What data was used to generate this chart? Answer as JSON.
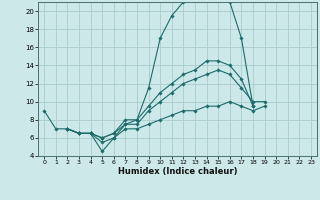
{
  "xlabel": "Humidex (Indice chaleur)",
  "bg_color": "#cce8e8",
  "grid_color": "#aacccc",
  "line_color": "#1e6b6b",
  "xlim": [
    -0.5,
    23.5
  ],
  "ylim": [
    4,
    21
  ],
  "xticks": [
    0,
    1,
    2,
    3,
    4,
    5,
    6,
    7,
    8,
    9,
    10,
    11,
    12,
    13,
    14,
    15,
    16,
    17,
    18,
    19,
    20,
    21,
    22,
    23
  ],
  "yticks": [
    4,
    6,
    8,
    10,
    12,
    14,
    16,
    18,
    20
  ],
  "lines": [
    {
      "x": [
        0,
        1,
        2,
        3,
        4,
        5,
        6,
        7,
        8,
        9,
        10,
        11,
        12,
        13,
        14,
        15,
        16,
        17,
        18
      ],
      "y": [
        9,
        7,
        7,
        6.5,
        6.5,
        4.5,
        6,
        7.5,
        8,
        11.5,
        17,
        19.5,
        21,
        21.5,
        21.5,
        21.5,
        21,
        17,
        9.5
      ]
    },
    {
      "x": [
        2,
        3,
        4,
        5,
        6,
        7,
        8,
        9,
        10,
        11,
        12,
        13,
        14,
        15,
        16,
        17,
        18,
        19,
        20,
        21,
        22,
        23
      ],
      "y": [
        7,
        6.5,
        6.5,
        6,
        6.5,
        8,
        8,
        9.5,
        11,
        12,
        13,
        13.5,
        14.5,
        14.5,
        14,
        12.5,
        9.5,
        null,
        null,
        null,
        null,
        null
      ]
    },
    {
      "x": [
        2,
        3,
        4,
        5,
        6,
        7,
        8,
        9,
        10,
        11,
        12,
        13,
        14,
        15,
        16,
        17,
        18,
        19,
        20,
        21,
        22,
        23
      ],
      "y": [
        7,
        6.5,
        6.5,
        6,
        6.5,
        7.5,
        7.5,
        9,
        10,
        11,
        12,
        12.5,
        13,
        13.5,
        13,
        11.5,
        10,
        10,
        null,
        null,
        null,
        null
      ]
    },
    {
      "x": [
        2,
        3,
        4,
        5,
        6,
        7,
        8,
        9,
        10,
        11,
        12,
        13,
        14,
        15,
        16,
        17,
        18,
        19,
        20,
        21,
        22,
        23
      ],
      "y": [
        7,
        6.5,
        6.5,
        5.5,
        6,
        7,
        7,
        7.5,
        8,
        8.5,
        9,
        9,
        9.5,
        9.5,
        10,
        9.5,
        9,
        9.5,
        null,
        null,
        null,
        null
      ]
    }
  ]
}
